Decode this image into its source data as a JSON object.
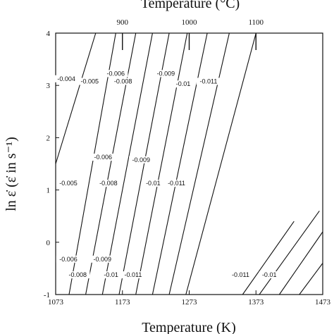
{
  "chart_data": {
    "type": "contour",
    "title": "",
    "top_axis": {
      "label": "Temperature (°C)",
      "ticks": [
        900,
        1000,
        1100
      ]
    },
    "x_axis": {
      "label": "Temperature (K)",
      "range": [
        1073,
        1473
      ],
      "ticks": [
        1073,
        1173,
        1273,
        1373,
        1473
      ]
    },
    "y_axis": {
      "label": "ln ε̇ (ε̇ in s⁻¹)",
      "range": [
        -1,
        4
      ],
      "ticks": [
        -1,
        0,
        1,
        2,
        3,
        4
      ]
    },
    "contour_lines": [
      {
        "points": [
          [
            1073,
            1.5
          ],
          [
            1133,
            4
          ]
        ]
      },
      {
        "points": [
          [
            1093,
            -1
          ],
          [
            1163,
            4
          ]
        ]
      },
      {
        "points": [
          [
            1118,
            -1
          ],
          [
            1193,
            4
          ]
        ]
      },
      {
        "points": [
          [
            1143,
            -1
          ],
          [
            1218,
            4
          ]
        ]
      },
      {
        "points": [
          [
            1168,
            -1
          ],
          [
            1243,
            4
          ]
        ]
      },
      {
        "points": [
          [
            1193,
            -1
          ],
          [
            1270,
            4
          ]
        ]
      },
      {
        "points": [
          [
            1218,
            -1
          ],
          [
            1300,
            4
          ]
        ]
      },
      {
        "points": [
          [
            1243,
            -1
          ],
          [
            1333,
            4
          ]
        ]
      },
      {
        "points": [
          [
            1268,
            -1
          ],
          [
            1373,
            4
          ]
        ]
      },
      {
        "points": [
          [
            1353,
            -1
          ],
          [
            1430,
            0.4
          ]
        ]
      },
      {
        "points": [
          [
            1378,
            -1
          ],
          [
            1468,
            0.6
          ]
        ]
      },
      {
        "points": [
          [
            1408,
            -1
          ],
          [
            1473,
            0.2
          ]
        ]
      },
      {
        "points": [
          [
            1438,
            -1
          ],
          [
            1473,
            -0.4
          ]
        ]
      }
    ],
    "contour_labels": [
      {
        "text": "-0.004",
        "x": 1089,
        "y": 3.1
      },
      {
        "text": "-0.005",
        "x": 1124,
        "y": 3.05
      },
      {
        "text": "-0.006",
        "x": 1163,
        "y": 3.2
      },
      {
        "text": "-0.008",
        "x": 1174,
        "y": 3.05
      },
      {
        "text": "-0.009",
        "x": 1238,
        "y": 3.2
      },
      {
        "text": "-0.01",
        "x": 1264,
        "y": 3.0
      },
      {
        "text": "-0.011",
        "x": 1302,
        "y": 3.05
      },
      {
        "text": "-0.006",
        "x": 1144,
        "y": 1.6
      },
      {
        "text": "-0.009",
        "x": 1201,
        "y": 1.55
      },
      {
        "text": "-0.005",
        "x": 1092,
        "y": 1.1
      },
      {
        "text": "-0.008",
        "x": 1152,
        "y": 1.1
      },
      {
        "text": "-0.01",
        "x": 1219,
        "y": 1.1
      },
      {
        "text": "-0.011",
        "x": 1254,
        "y": 1.1
      },
      {
        "text": "-0.006",
        "x": 1092,
        "y": -0.35
      },
      {
        "text": "-0.009",
        "x": 1143,
        "y": -0.35
      },
      {
        "text": "-0.008",
        "x": 1106,
        "y": -0.65
      },
      {
        "text": "-0.01",
        "x": 1156,
        "y": -0.65
      },
      {
        "text": "-0.011",
        "x": 1189,
        "y": -0.65
      },
      {
        "text": "-0.011",
        "x": 1350,
        "y": -0.65
      },
      {
        "text": "-0.01",
        "x": 1393,
        "y": -0.65
      }
    ]
  }
}
